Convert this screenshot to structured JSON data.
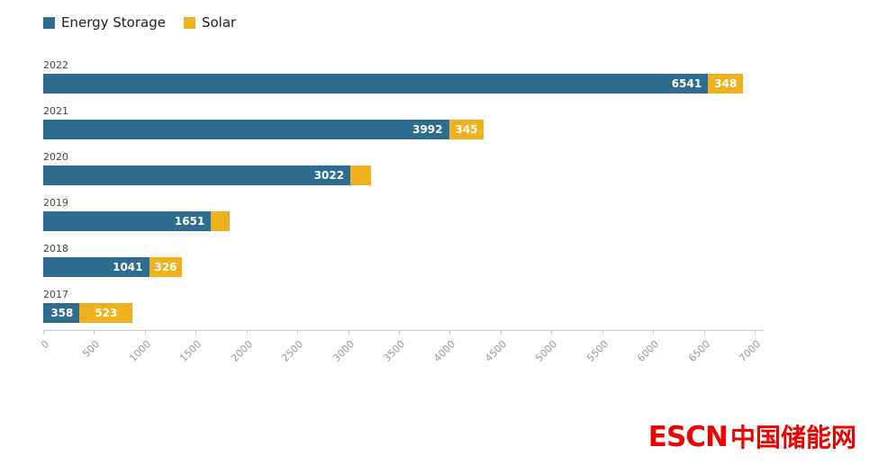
{
  "chart_data": {
    "type": "bar",
    "orientation": "horizontal",
    "stacked": true,
    "title": "",
    "xlabel": "",
    "ylabel": "",
    "categories": [
      "2022",
      "2021",
      "2020",
      "2019",
      "2018",
      "2017"
    ],
    "series": [
      {
        "name": "Energy Storage",
        "color": "#2e6d8f",
        "values": [
          6541,
          3992,
          3022,
          1651,
          1041,
          358
        ],
        "labels": [
          "6541",
          "3992",
          "3022",
          "1651",
          "1041",
          "358"
        ]
      },
      {
        "name": "Solar",
        "color": "#f0b11f",
        "values": [
          348,
          345,
          200,
          180,
          326,
          523
        ],
        "labels": [
          "348",
          "345",
          "",
          "",
          "326",
          "523"
        ]
      }
    ],
    "xlim": [
      0,
      7000
    ],
    "xticks": [
      0,
      500,
      1000,
      1500,
      2000,
      2500,
      3000,
      3500,
      4000,
      4500,
      5000,
      5500,
      6000,
      6500,
      7000
    ],
    "legend_position": "top-left",
    "grid": false
  },
  "watermark": {
    "text_en": "ESCN",
    "text_zh": "中国储能网",
    "color": "#ee0000"
  }
}
